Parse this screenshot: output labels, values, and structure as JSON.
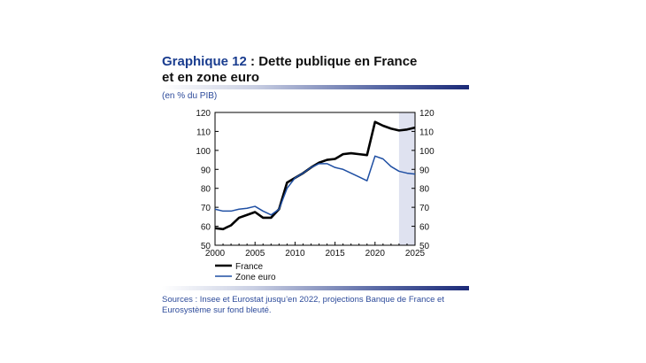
{
  "header": {
    "number": "Graphique 12",
    "separator": " : ",
    "title_line1": "Dette publique en France",
    "title_line2": "et en zone euro"
  },
  "unit_label": "(en % du PIB)",
  "sources": "Sources : Insee et Eurostat jusqu’en 2022, projections Banque de France et Eurosystème sur fond bleuté.",
  "colors": {
    "france": "#000000",
    "zone_euro": "#1f4fa3",
    "projection_band": "#dfe2f0",
    "rule_dark": "#1b2a78"
  },
  "chart_data": {
    "type": "line",
    "xlim": [
      2000,
      2025
    ],
    "ylim": [
      50,
      120
    ],
    "x_ticks": [
      "2000",
      "2005",
      "2010",
      "2015",
      "2020",
      "2025"
    ],
    "y_ticks": [
      "50",
      "60",
      "70",
      "80",
      "90",
      "100",
      "110",
      "120"
    ],
    "projection_start": 2023,
    "legend_position": "bottom-left",
    "x": [
      2000,
      2001,
      2002,
      2003,
      2004,
      2005,
      2006,
      2007,
      2008,
      2009,
      2010,
      2011,
      2012,
      2013,
      2014,
      2015,
      2016,
      2017,
      2018,
      2019,
      2020,
      2021,
      2022,
      2023,
      2024,
      2025
    ],
    "series": [
      {
        "name": "France",
        "values": [
          59,
          58.5,
          60.5,
          64.5,
          66,
          67.5,
          64.5,
          64.5,
          69,
          83,
          85.5,
          88,
          91,
          93.5,
          95,
          95.5,
          98,
          98.5,
          98,
          97.5,
          115,
          113,
          111.5,
          110.5,
          111,
          112
        ]
      },
      {
        "name": "Zone euro",
        "values": [
          69,
          68,
          68,
          69,
          69.5,
          70.5,
          68,
          66,
          69,
          80,
          85.5,
          88,
          91,
          93,
          93,
          91,
          90,
          88,
          86,
          84,
          97,
          95.5,
          91.5,
          89,
          88,
          87.5
        ]
      }
    ]
  }
}
